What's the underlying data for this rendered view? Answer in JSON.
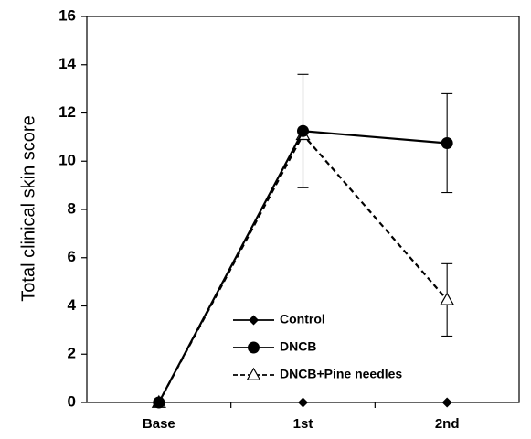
{
  "chart_data": {
    "type": "line",
    "title": "",
    "xlabel": "",
    "ylabel": "Total clinical skin score",
    "categories": [
      "Base",
      "1st",
      "2nd"
    ],
    "ylim": [
      0,
      16
    ],
    "yticks": [
      0,
      2,
      4,
      6,
      8,
      10,
      12,
      14,
      16
    ],
    "grid": false,
    "legend_position": "bottom-center",
    "series": [
      {
        "name": "Control",
        "values": [
          0,
          0,
          0
        ],
        "error": [
          0,
          0,
          0
        ],
        "marker": "diamond",
        "line": "solid",
        "color": "#000000"
      },
      {
        "name": "DNCB",
        "values": [
          0,
          11.25,
          10.75
        ],
        "error": [
          0,
          2.35,
          2.05
        ],
        "marker": "circle",
        "line": "solid",
        "color": "#000000"
      },
      {
        "name": "DNCB+Pine needles",
        "values": [
          0,
          11.1,
          4.25
        ],
        "error": [
          0,
          0,
          1.5
        ],
        "marker": "triangle-open",
        "line": "dashed",
        "color": "#000000"
      }
    ]
  }
}
